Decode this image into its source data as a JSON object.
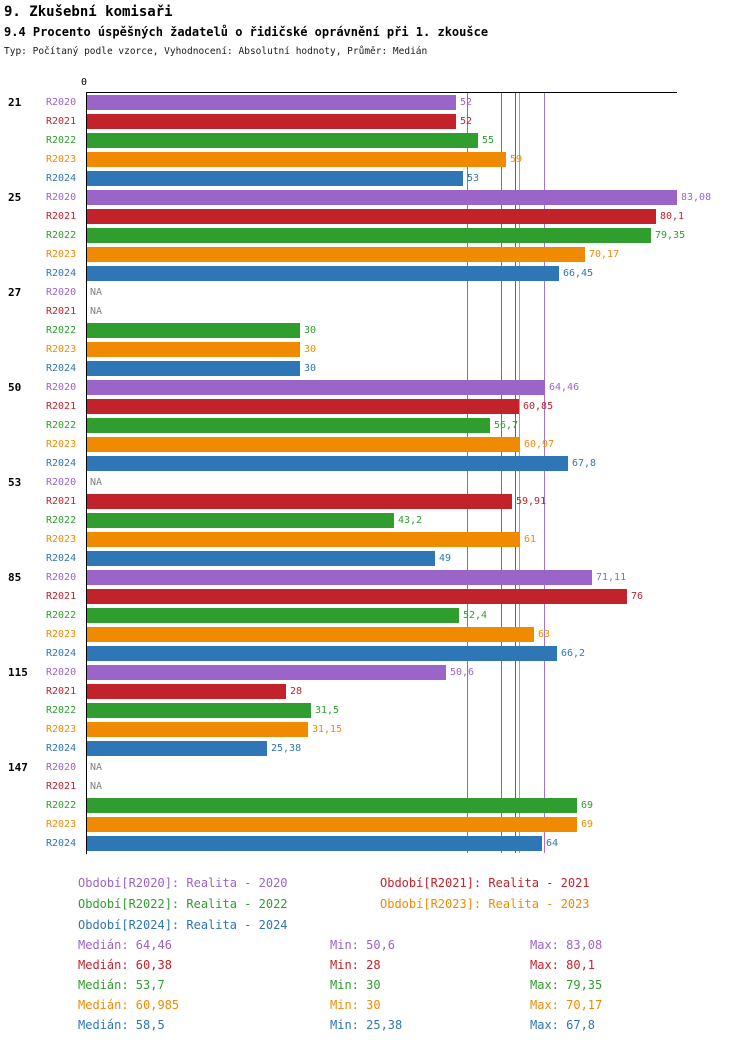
{
  "header": {
    "title": "9. Zkušební komisaři",
    "subtitle": "9.4 Procento úspěšných žadatelů o řidičské oprávnění při 1. zkoušce",
    "meta": "Typ: Počítaný podle vzorce, Vyhodnocení: Absolutní hodnoty, Průměr: Medián"
  },
  "chart_data": {
    "type": "bar",
    "orientation": "horizontal",
    "value_axis": {
      "origin_label": "0",
      "min": 0,
      "max": 83.08
    },
    "na_label": "NA",
    "series": [
      {
        "id": "R2020",
        "label": "R2020",
        "color": "#9a64c8",
        "median": 64.46
      },
      {
        "id": "R2021",
        "label": "R2021",
        "color": "#c2232b",
        "median": 60.38
      },
      {
        "id": "R2022",
        "label": "R2022",
        "color": "#2f9e2e",
        "median": 53.7
      },
      {
        "id": "R2023",
        "label": "R2023",
        "color": "#f08a00",
        "median": 60.985
      },
      {
        "id": "R2024",
        "label": "R2024",
        "color": "#2e76b5",
        "median": 58.5
      }
    ],
    "groups": [
      {
        "label": "21",
        "values": [
          "52",
          "52",
          "55",
          "59",
          "53"
        ]
      },
      {
        "label": "25",
        "values": [
          "83,08",
          "80,1",
          "79,35",
          "70,17",
          "66,45"
        ]
      },
      {
        "label": "27",
        "values": [
          "NA",
          "NA",
          "30",
          "30",
          "30"
        ]
      },
      {
        "label": "50",
        "values": [
          "64,46",
          "60,85",
          "56,7",
          "60,97",
          "67,8"
        ]
      },
      {
        "label": "53",
        "values": [
          "NA",
          "59,91",
          "43,2",
          "61",
          "49"
        ]
      },
      {
        "label": "85",
        "values": [
          "71,11",
          "76",
          "52,4",
          "63",
          "66,2"
        ]
      },
      {
        "label": "115",
        "values": [
          "50,6",
          "28",
          "31,5",
          "31,15",
          "25,38"
        ]
      },
      {
        "label": "147",
        "values": [
          "NA",
          "NA",
          "69",
          "69",
          "64"
        ]
      }
    ]
  },
  "legend": [
    {
      "label": "Období[R2020]: Realita - 2020",
      "color": "#9a64c8",
      "col": 0
    },
    {
      "label": "Období[R2021]: Realita - 2021",
      "color": "#c2232b",
      "col": 1
    },
    {
      "label": "Období[R2022]: Realita - 2022",
      "color": "#2f9e2e",
      "col": 0
    },
    {
      "label": "Období[R2023]: Realita - 2023",
      "color": "#f08a00",
      "col": 1
    },
    {
      "label": "Období[R2024]: Realita - 2024",
      "color": "#2e76b5",
      "col": 0
    }
  ],
  "stats": [
    {
      "median": "Medián: 64,46",
      "min": "Min: 50,6",
      "max": "Max: 83,08",
      "color": "#9a64c8"
    },
    {
      "median": "Medián: 60,38",
      "min": "Min: 28",
      "max": "Max: 80,1",
      "color": "#c2232b"
    },
    {
      "median": "Medián: 53,7",
      "min": "Min: 30",
      "max": "Max: 79,35",
      "color": "#2f9e2e"
    },
    {
      "median": "Medián: 60,985",
      "min": "Min: 30",
      "max": "Max: 70,17",
      "color": "#f08a00"
    },
    {
      "median": "Medián: 58,5",
      "min": "Min: 25,38",
      "max": "Max: 67,8",
      "color": "#2e76b5"
    }
  ]
}
